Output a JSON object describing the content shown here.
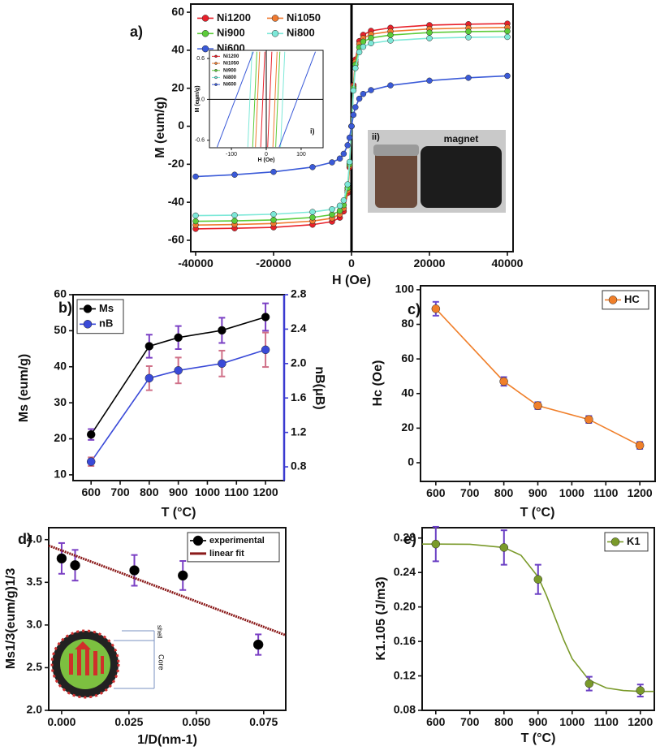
{
  "chart_data": [
    {
      "type": "line",
      "label": "a)",
      "xlabel": "H (Oe)",
      "ylabel": "M (eum/g)",
      "xlim": [
        -41250,
        41460
      ],
      "ylim": [
        -66,
        64.3
      ],
      "xticks": [
        -40000,
        -20000,
        0,
        20000,
        40000
      ],
      "yticks": [
        -60,
        -40,
        -20,
        0,
        20,
        40,
        60
      ],
      "legend": "upper left",
      "x": [
        -40000,
        -30000,
        -20000,
        -10000,
        -5000,
        -3000,
        -2000,
        -1000,
        -500,
        0,
        500,
        1000,
        2000,
        3000,
        5000,
        10000,
        20000,
        30000,
        40000
      ],
      "series": [
        {
          "name": "Ni1200",
          "color": "#e8202a",
          "values": [
            -54,
            -53.7,
            -53.2,
            -51.8,
            -50.2,
            -48.1,
            -44.8,
            -35.1,
            -21.6,
            0,
            21.6,
            35.1,
            44.8,
            48.1,
            50.2,
            51.8,
            53.2,
            53.7,
            54
          ]
        },
        {
          "name": "Ni1050",
          "color": "#f07a30",
          "values": [
            -52,
            -51.7,
            -51.2,
            -49.9,
            -48.4,
            -46.3,
            -43.2,
            -33.8,
            -20.8,
            0,
            20.8,
            33.8,
            43.2,
            46.3,
            48.4,
            49.9,
            51.2,
            51.7,
            52
          ]
        },
        {
          "name": "Ni900",
          "color": "#5ccc3a",
          "values": [
            -50,
            -49.8,
            -49.3,
            -48,
            -46.5,
            -44.5,
            -41.5,
            -32.5,
            -20,
            0,
            20,
            32.5,
            41.5,
            44.5,
            46.5,
            48,
            49.3,
            49.8,
            50
          ]
        },
        {
          "name": "Ni800",
          "color": "#7de8d8",
          "values": [
            -47,
            -46.8,
            -46.3,
            -45.1,
            -43.7,
            -41.8,
            -39,
            -30.6,
            -18.8,
            0,
            18.8,
            30.6,
            39,
            41.8,
            43.7,
            45.1,
            46.3,
            46.8,
            47
          ]
        },
        {
          "name": "Ni600",
          "color": "#3a5ad8",
          "values": [
            -26.5,
            -25.5,
            -24,
            -21.5,
            -19,
            -17,
            -14.5,
            -10,
            -6,
            0,
            6,
            10,
            14.5,
            17,
            19,
            21.5,
            24,
            25.5,
            26.5
          ]
        }
      ],
      "inset_photo": {
        "label": "ii)",
        "caption": "magnet"
      }
    },
    {
      "type": "line",
      "label": "i)",
      "xlabel": "H (Oe)",
      "ylabel": "M (eum/g)",
      "xlim": [
        -163,
        163
      ],
      "ylim": [
        -0.71,
        0.72
      ],
      "xticks": [
        -100,
        0,
        100
      ],
      "yticks": [
        -0.6,
        {
          "value": 0,
          "label": "0.0"
        },
        0.6
      ],
      "legend": "upper left",
      "series": [
        {
          "name": "Ni1200",
          "color": "#e8202a",
          "x": [
            -16,
            -4,
            null,
            4,
            16
          ],
          "values": [
            -0.7,
            0.7,
            null,
            -0.7,
            0.7
          ]
        },
        {
          "name": "Ni1050",
          "color": "#f07a30",
          "x": [
            -31,
            -19,
            null,
            19,
            31
          ],
          "values": [
            -0.7,
            0.7,
            null,
            -0.7,
            0.7
          ]
        },
        {
          "name": "Ni900",
          "color": "#5ccc3a",
          "x": [
            -39,
            -27,
            null,
            27,
            39
          ],
          "values": [
            -0.7,
            0.7,
            null,
            -0.7,
            0.7
          ]
        },
        {
          "name": "Ni800",
          "color": "#7de8d8",
          "x": [
            -53,
            -41,
            null,
            41,
            53
          ],
          "values": [
            -0.7,
            0.7,
            null,
            -0.7,
            0.7
          ]
        },
        {
          "name": "Ni600",
          "color": "#3a5ad8",
          "x": [
            -141,
            -37,
            null,
            37,
            141
          ],
          "values": [
            -0.7,
            0.7,
            null,
            -0.7,
            0.7
          ]
        }
      ]
    },
    {
      "type": "line",
      "label": "b)",
      "xlabel": "T (°C)",
      "ylabel": "Ms (eum/g)",
      "y2label": "nB(μB)",
      "xlim": [
        538,
        1264
      ],
      "ylim": [
        8.4,
        60
      ],
      "y2lim": [
        0.64,
        2.8
      ],
      "xticks": [
        600,
        700,
        800,
        900,
        1000,
        1100,
        1200
      ],
      "yticks": [
        10,
        20,
        30,
        40,
        50,
        60
      ],
      "y2ticks": [
        0.8,
        1.2,
        1.6,
        {
          "value": 2,
          "label": "2.0"
        },
        2.4,
        2.8
      ],
      "y2color": "#3a3ad0",
      "legend": "upper left",
      "x": [
        600,
        800,
        900,
        1050,
        1200
      ],
      "series": [
        {
          "name": "Ms",
          "color": "#000000",
          "values": [
            21.2,
            45.7,
            48.1,
            50.1,
            53.8
          ],
          "errors": [
            1.5,
            3.2,
            3.2,
            3.5,
            3.8
          ],
          "error_color": "#7a3fc4"
        },
        {
          "name": "nB",
          "color": "#3a4ad8",
          "axis": "y2",
          "values": [
            0.86,
            1.83,
            1.92,
            2.0,
            2.16
          ],
          "errors": [
            0.05,
            0.14,
            0.15,
            0.15,
            0.2
          ],
          "error_color": "#d07088"
        }
      ]
    },
    {
      "type": "line",
      "label": "c)",
      "xlabel": "T (°C)",
      "ylabel": "Hc (Oe)",
      "xlim": [
        555,
        1245
      ],
      "ylim": [
        -10.8,
        102.3
      ],
      "xticks": [
        600,
        700,
        800,
        900,
        1000,
        1100,
        1200
      ],
      "yticks": [
        0,
        20,
        40,
        60,
        80,
        100
      ],
      "legend": "upper right",
      "x": [
        600,
        800,
        900,
        1050,
        1200
      ],
      "series": [
        {
          "name": "HC",
          "color": "#f07f2a",
          "values": [
            89,
            47,
            33,
            25,
            10
          ],
          "errors": [
            4,
            2.5,
            2,
            2,
            2
          ],
          "error_color": "#6a4ad0"
        }
      ]
    },
    {
      "type": "scatter",
      "label": "d)",
      "xlabel": "1/D(nm-1)",
      "ylabel": "Ms1/3(eum/g)1/3",
      "xlim": [
        -0.0048,
        0.0832
      ],
      "ylim": [
        2.0,
        4.14
      ],
      "xticks": [
        {
          "value": 0,
          "label": "0.000"
        },
        0.025,
        {
          "value": 0.05,
          "label": "0.050"
        },
        0.075
      ],
      "yticks": [
        {
          "value": 2,
          "label": "2.0"
        },
        2.5,
        {
          "value": 3,
          "label": "3.0"
        },
        3.5,
        {
          "value": 4,
          "label": "4.0"
        }
      ],
      "legend": "upper right",
      "series": [
        {
          "name": "experimental",
          "color": "#000000",
          "line": false,
          "x": [
            0,
            0.005,
            0.027,
            0.045,
            0.073
          ],
          "values": [
            3.78,
            3.7,
            3.64,
            3.58,
            2.77
          ],
          "errors": [
            0.18,
            0.18,
            0.18,
            0.17,
            0.12
          ],
          "error_color": "#7a3fc4"
        },
        {
          "name": "linear fit",
          "color": "#8b1a1a",
          "markers": false,
          "x": [
            -0.0048,
            0.0832
          ],
          "values": [
            3.93,
            2.88
          ]
        }
      ],
      "inset_diagram": {
        "labels": [
          "shell",
          "Core"
        ]
      }
    },
    {
      "type": "line",
      "label": "e)",
      "xlabel": "T (°C)",
      "ylabel": "K1.105 (J/m3)",
      "xlim": [
        560,
        1241
      ],
      "ylim": [
        0.08,
        0.292
      ],
      "xticks": [
        600,
        700,
        800,
        900,
        1000,
        1100,
        1200
      ],
      "yticks": [
        0.08,
        0.12,
        0.16,
        {
          "value": 0.2,
          "label": "0.20"
        },
        0.24,
        0.28
      ],
      "legend": "upper right",
      "x": [
        600,
        800,
        900,
        1050,
        1200
      ],
      "series": [
        {
          "name": "K1",
          "color": "#7a9a2a",
          "line": false,
          "values": [
            0.273,
            0.269,
            0.232,
            0.111,
            0.103
          ],
          "errors": [
            0.02,
            0.02,
            0.017,
            0.008,
            0.007
          ],
          "error_color": "#6a3fc4"
        }
      ],
      "curve": {
        "x": [
          560,
          600,
          700,
          800,
          850,
          900,
          925,
          950,
          975,
          1000,
          1050,
          1100,
          1150,
          1200,
          1240
        ],
        "values": [
          0.273,
          0.273,
          0.2727,
          0.269,
          0.26,
          0.235,
          0.213,
          0.1875,
          0.162,
          0.14,
          0.115,
          0.106,
          0.103,
          0.102,
          0.102
        ]
      }
    }
  ]
}
